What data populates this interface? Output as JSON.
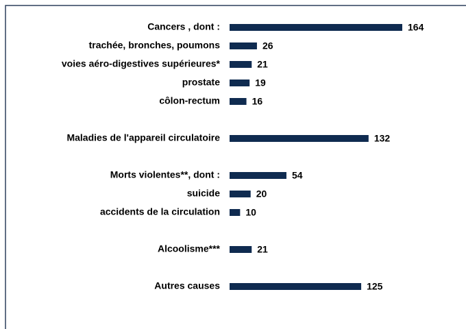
{
  "chart_data": {
    "type": "bar",
    "orientation": "horizontal",
    "color": "#0f2b50",
    "categories": [
      "Cancers , dont :",
      "trachée, bronches, poumons",
      "voies aéro-digestives supérieures*",
      "prostate",
      "côlon-rectum",
      null,
      "Maladies de l'appareil circulatoire",
      null,
      "Morts violentes**, dont :",
      "suicide",
      "accidents de la circulation",
      null,
      "Alcoolisme***",
      null,
      "Autres causes"
    ],
    "values": [
      164,
      26,
      21,
      19,
      16,
      null,
      132,
      null,
      54,
      20,
      10,
      null,
      21,
      null,
      125
    ]
  }
}
